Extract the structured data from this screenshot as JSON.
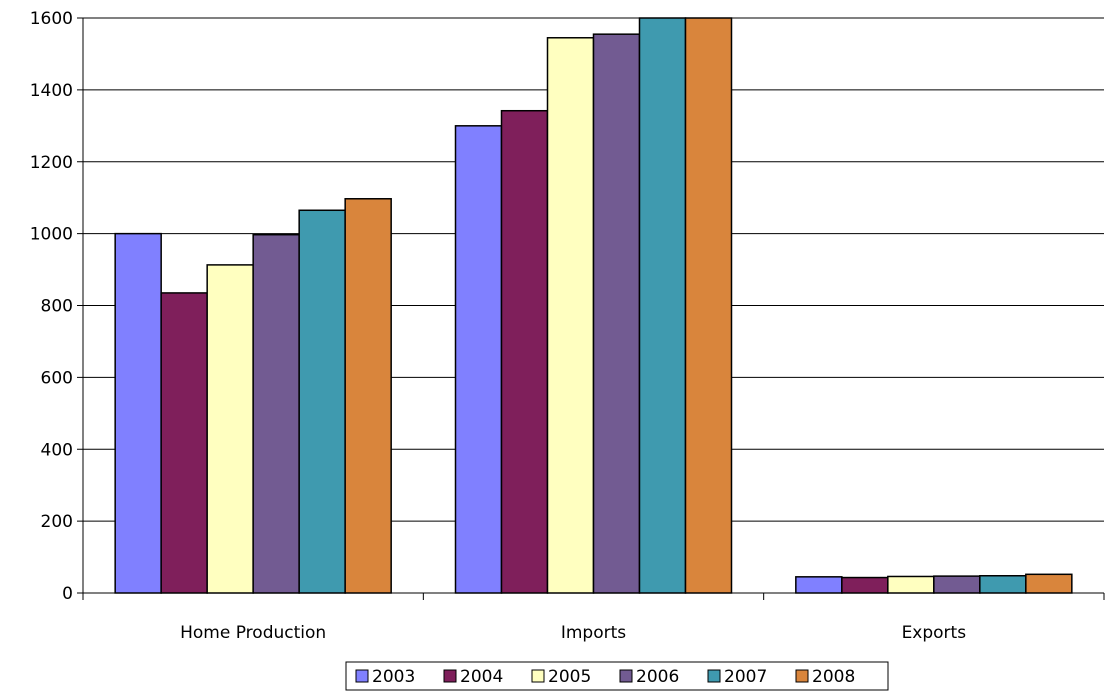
{
  "chart_data": {
    "type": "bar",
    "categories": [
      "Home Production",
      "Imports",
      "Exports"
    ],
    "series": [
      {
        "name": "2003",
        "color": "#8080ff",
        "values": [
          1000,
          1300,
          45
        ]
      },
      {
        "name": "2004",
        "color": "#7f1f5b",
        "values": [
          835,
          1342,
          43
        ]
      },
      {
        "name": "2005",
        "color": "#ffffc0",
        "values": [
          913,
          1545,
          46
        ]
      },
      {
        "name": "2006",
        "color": "#725b92",
        "values": [
          997,
          1555,
          47
        ]
      },
      {
        "name": "2007",
        "color": "#3f9aaf",
        "values": [
          1065,
          1600,
          48
        ]
      },
      {
        "name": "2008",
        "color": "#d9853c",
        "values": [
          1097,
          1600,
          52
        ]
      }
    ],
    "ylim": [
      0,
      1600
    ],
    "yticks": [
      0,
      200,
      400,
      600,
      800,
      1000,
      1200,
      1400,
      1600
    ],
    "ytick_labels": [
      "0",
      "200",
      "400",
      "600",
      "800",
      "1000",
      "1200",
      "1400",
      "1600"
    ],
    "grid": true,
    "legend_position": "bottom",
    "title": "",
    "xlabel": "",
    "ylabel": ""
  }
}
